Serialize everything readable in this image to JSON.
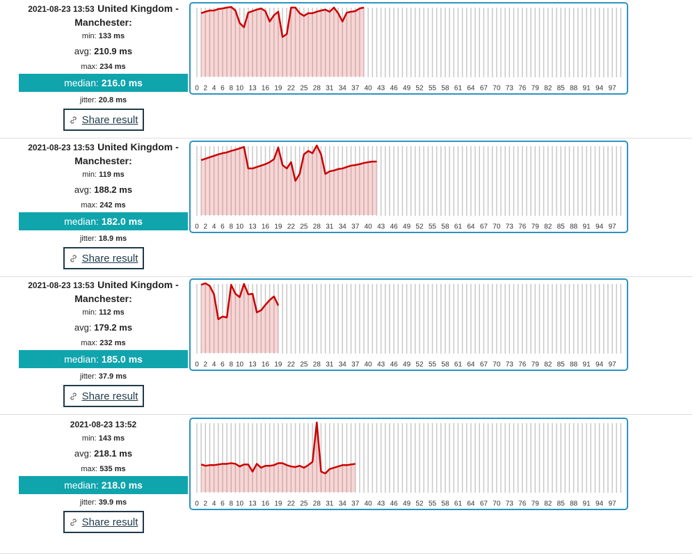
{
  "labels": {
    "min": "min:",
    "avg": "avg:",
    "max": "max:",
    "median": "median:",
    "jitter": "jitter:",
    "share": "Share result"
  },
  "results": [
    {
      "timestamp": "2021-08-23 13:53",
      "location": "United Kingdom - Manchester:",
      "min": "133 ms",
      "avg": "210.9 ms",
      "max": "234 ms",
      "median": "216.0 ms",
      "jitter": "20.8 ms"
    },
    {
      "timestamp": "2021-08-23 13:53",
      "location": "United Kingdom - Manchester:",
      "min": "119 ms",
      "avg": "188.2 ms",
      "max": "242 ms",
      "median": "182.0 ms",
      "jitter": "18.9 ms"
    },
    {
      "timestamp": "2021-08-23 13:53",
      "location": "United Kingdom - Manchester:",
      "min": "112 ms",
      "avg": "179.2 ms",
      "max": "232 ms",
      "median": "185.0 ms",
      "jitter": "37.9 ms"
    },
    {
      "timestamp": "2021-08-23 13:52",
      "min": "143 ms",
      "avg": "218.1 ms",
      "max": "535 ms",
      "median": "218.0 ms",
      "jitter": "39.9 ms"
    }
  ],
  "chart_data": [
    {
      "type": "line",
      "color": "#cc0000",
      "xlim": [
        0,
        99
      ],
      "ylim": [
        0,
        234
      ],
      "xticks": [
        0,
        2,
        4,
        6,
        8,
        10,
        13,
        16,
        19,
        22,
        25,
        28,
        31,
        34,
        37,
        40,
        43,
        46,
        49,
        52,
        55,
        58,
        61,
        64,
        67,
        70,
        73,
        76,
        79,
        82,
        85,
        88,
        91,
        94,
        97
      ],
      "x": [
        1,
        2,
        3,
        4,
        5,
        6,
        7,
        8,
        9,
        10,
        11,
        12,
        13,
        14,
        15,
        16,
        17,
        18,
        19,
        20,
        21,
        22,
        23,
        24,
        25,
        26,
        27,
        28,
        29,
        30,
        31,
        32,
        33,
        34,
        35,
        36,
        37,
        38,
        39
      ],
      "values": [
        213,
        218,
        222,
        222,
        227,
        229,
        232,
        234,
        222,
        180,
        166,
        215,
        220,
        225,
        229,
        220,
        185,
        206,
        218,
        133,
        143,
        232,
        232,
        213,
        204,
        213,
        213,
        218,
        222,
        225,
        218,
        232,
        213,
        185,
        215,
        218,
        220,
        229,
        232
      ]
    },
    {
      "type": "line",
      "color": "#cc0000",
      "xlim": [
        0,
        99
      ],
      "ylim": [
        0,
        242
      ],
      "xticks": [
        0,
        2,
        4,
        6,
        8,
        10,
        13,
        16,
        19,
        22,
        25,
        28,
        31,
        34,
        37,
        40,
        43,
        46,
        49,
        52,
        55,
        58,
        61,
        64,
        67,
        70,
        73,
        76,
        79,
        82,
        85,
        88,
        91,
        94,
        97
      ],
      "x": [
        1,
        2,
        3,
        4,
        5,
        6,
        7,
        8,
        9,
        10,
        11,
        12,
        13,
        14,
        15,
        16,
        17,
        18,
        19,
        20,
        21,
        22,
        23,
        24,
        25,
        26,
        27,
        28,
        29,
        30,
        31,
        32,
        33,
        34,
        35,
        36,
        37,
        38,
        39,
        40,
        41,
        42
      ],
      "values": [
        191,
        196,
        201,
        206,
        211,
        215,
        218,
        223,
        227,
        232,
        237,
        162,
        162,
        167,
        172,
        177,
        184,
        194,
        235,
        174,
        162,
        184,
        119,
        143,
        211,
        223,
        215,
        242,
        211,
        143,
        152,
        155,
        160,
        162,
        167,
        172,
        174,
        177,
        181,
        184,
        186,
        186
      ]
    },
    {
      "type": "line",
      "color": "#cc0000",
      "xlim": [
        0,
        99
      ],
      "ylim": [
        0,
        232
      ],
      "xticks": [
        0,
        2,
        4,
        6,
        8,
        10,
        13,
        16,
        19,
        22,
        25,
        28,
        31,
        34,
        37,
        40,
        43,
        46,
        49,
        52,
        55,
        58,
        61,
        64,
        67,
        70,
        73,
        76,
        79,
        82,
        85,
        88,
        91,
        94,
        97
      ],
      "x": [
        1,
        2,
        3,
        4,
        5,
        6,
        7,
        8,
        9,
        10,
        11,
        12,
        13,
        14,
        15,
        16,
        17,
        18,
        19
      ],
      "values": [
        227,
        232,
        223,
        195,
        112,
        121,
        118,
        227,
        197,
        186,
        230,
        195,
        197,
        135,
        142,
        160,
        176,
        188,
        158
      ]
    },
    {
      "type": "line",
      "color": "#cc0000",
      "xlim": [
        0,
        99
      ],
      "ylim": [
        0,
        535
      ],
      "xticks": [
        0,
        2,
        4,
        6,
        8,
        10,
        13,
        16,
        19,
        22,
        25,
        28,
        31,
        34,
        37,
        40,
        43,
        46,
        49,
        52,
        55,
        58,
        61,
        64,
        67,
        70,
        73,
        76,
        79,
        82,
        85,
        88,
        91,
        94,
        97
      ],
      "x": [
        1,
        2,
        3,
        4,
        5,
        6,
        7,
        8,
        9,
        10,
        11,
        12,
        13,
        14,
        15,
        16,
        17,
        18,
        19,
        20,
        21,
        22,
        23,
        24,
        25,
        26,
        27,
        28,
        29,
        30,
        31,
        32,
        33,
        34,
        35,
        36,
        37
      ],
      "values": [
        212,
        202,
        207,
        207,
        212,
        217,
        217,
        222,
        217,
        197,
        212,
        212,
        157,
        217,
        187,
        202,
        202,
        207,
        222,
        222,
        207,
        197,
        192,
        202,
        187,
        207,
        232,
        535,
        157,
        143,
        177,
        187,
        197,
        207,
        207,
        212,
        217
      ]
    }
  ]
}
